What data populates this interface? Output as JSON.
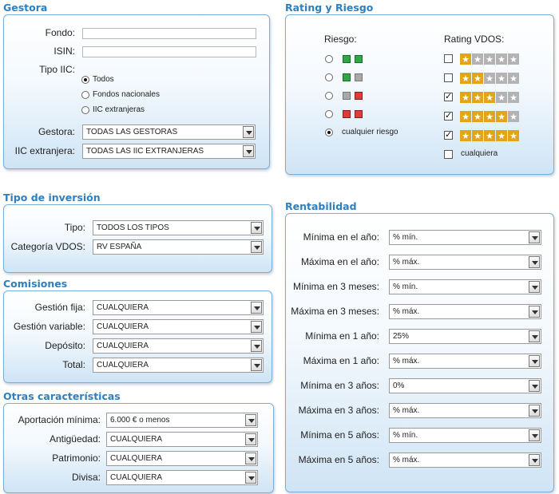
{
  "gestora": {
    "title": "Gestora",
    "fondo_label": "Fondo:",
    "isin_label": "ISIN:",
    "tipo_iic_label": "Tipo IIC:",
    "tipo_iic_options": [
      "Todos",
      "Fondos nacionales",
      "IIC extranjeras"
    ],
    "tipo_iic_selected": 0,
    "gestora_label": "Gestora:",
    "gestora_value": "TODAS LAS GESTORAS",
    "iic_extranjera_label": "IIC extranjera:",
    "iic_extranjera_value": "TODAS LAS IIC EXTRANJERAS"
  },
  "rating": {
    "title": "Rating y Riesgo",
    "riesgo_label": "Riesgo:",
    "rating_label": "Rating VDOS:",
    "riesgo_options": [
      {
        "colors": [
          "green",
          "green"
        ]
      },
      {
        "colors": [
          "green",
          "gray"
        ]
      },
      {
        "colors": [
          "gray",
          "red"
        ]
      },
      {
        "colors": [
          "red",
          "red"
        ]
      }
    ],
    "cualquier_riesgo": "cualquier riesgo",
    "riesgo_selected": 4,
    "rating_options": [
      {
        "stars": 1,
        "checked": false
      },
      {
        "stars": 2,
        "checked": false
      },
      {
        "stars": 3,
        "checked": true
      },
      {
        "stars": 4,
        "checked": true
      },
      {
        "stars": 5,
        "checked": true
      }
    ],
    "cualquiera": "cualquiera",
    "cualquiera_checked": false
  },
  "inversion": {
    "title": "Tipo de inversión",
    "tipo_label": "Tipo:",
    "tipo_value": "TODOS LOS TIPOS",
    "categoria_label": "Categoría VDOS:",
    "categoria_value": "RV ESPAÑA"
  },
  "comisiones": {
    "title": "Comisiones",
    "rows": [
      {
        "label": "Gestión fija:",
        "value": "CUALQUIERA"
      },
      {
        "label": "Gestión variable:",
        "value": "CUALQUIERA"
      },
      {
        "label": "Depósito:",
        "value": "CUALQUIERA"
      },
      {
        "label": "Total:",
        "value": "CUALQUIERA"
      }
    ]
  },
  "otras": {
    "title": "Otras características",
    "rows": [
      {
        "label": "Aportación mínima:",
        "value": "6.000 € o menos"
      },
      {
        "label": "Antigüedad:",
        "value": "CUALQUIERA"
      },
      {
        "label": "Patrimonio:",
        "value": "CUALQUIERA"
      },
      {
        "label": "Divisa:",
        "value": "CUALQUIERA"
      }
    ]
  },
  "rentabilidad": {
    "title": "Rentabilidad",
    "rows": [
      {
        "label": "Mínima en el año:",
        "value": "% mín."
      },
      {
        "label": "Máxima en el año:",
        "value": "% máx."
      },
      {
        "label": "Mínima en 3 meses:",
        "value": "% mín."
      },
      {
        "label": "Máxima en 3 meses:",
        "value": "% máx."
      },
      {
        "label": "Mínima en 1 año:",
        "value": "25%"
      },
      {
        "label": "Máxima en 1 año:",
        "value": "% máx."
      },
      {
        "label": "Mínima en 3 años:",
        "value": "0%"
      },
      {
        "label": "Máxima en 3 años:",
        "value": "% máx."
      },
      {
        "label": "Mínima en 5 años:",
        "value": "% mín."
      },
      {
        "label": "Máxima en 5 años:",
        "value": "% máx."
      }
    ]
  }
}
